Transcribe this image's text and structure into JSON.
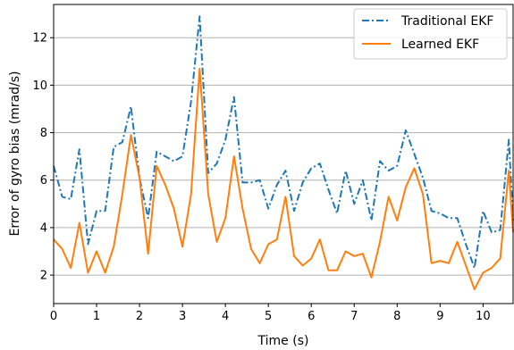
{
  "chart_data": {
    "type": "line",
    "xlabel": "Time (s)",
    "ylabel": "Error of gyro bias (mrad/s)",
    "xlim": [
      0,
      10.7
    ],
    "ylim": [
      0.8,
      13.4
    ],
    "xticks": [
      0,
      1,
      2,
      3,
      4,
      5,
      6,
      7,
      8,
      9,
      10
    ],
    "yticks": [
      2,
      4,
      6,
      8,
      10,
      12
    ],
    "grid": "horizontal",
    "legend_position": "top-right",
    "series": [
      {
        "name": "Traditional EKF",
        "color": "#1f77b4",
        "line_style": "dash-dot",
        "x": [
          0,
          0.2,
          0.4,
          0.6,
          0.8,
          1.0,
          1.2,
          1.4,
          1.6,
          1.8,
          2.0,
          2.2,
          2.4,
          2.6,
          2.8,
          3.0,
          3.2,
          3.4,
          3.6,
          3.8,
          4.0,
          4.2,
          4.4,
          4.6,
          4.8,
          5.0,
          5.2,
          5.4,
          5.6,
          5.8,
          6.0,
          6.2,
          6.4,
          6.6,
          6.8,
          7.0,
          7.2,
          7.4,
          7.6,
          7.8,
          8.0,
          8.2,
          8.4,
          8.6,
          8.8,
          9.0,
          9.2,
          9.4,
          9.6,
          9.8,
          10.0,
          10.2,
          10.4,
          10.6,
          10.7
        ],
        "y": [
          6.6,
          5.3,
          5.2,
          7.3,
          3.3,
          4.7,
          4.7,
          7.4,
          7.6,
          9.1,
          6.1,
          4.4,
          7.2,
          7.0,
          6.8,
          7.0,
          9.3,
          12.9,
          6.3,
          6.7,
          7.7,
          9.5,
          5.9,
          5.9,
          6.0,
          4.8,
          5.8,
          6.4,
          4.7,
          5.9,
          6.5,
          6.7,
          5.6,
          4.6,
          6.4,
          5.0,
          6.0,
          4.3,
          6.8,
          6.4,
          6.6,
          8.1,
          7.1,
          6.1,
          4.7,
          4.6,
          4.4,
          4.4,
          3.3,
          2.3,
          4.7,
          3.8,
          3.9,
          7.7,
          4.3
        ]
      },
      {
        "name": "Learned EKF",
        "color": "#ff7f0e",
        "line_style": "solid",
        "x": [
          0,
          0.2,
          0.4,
          0.6,
          0.8,
          1.0,
          1.2,
          1.4,
          1.6,
          1.8,
          2.0,
          2.2,
          2.4,
          2.6,
          2.8,
          3.0,
          3.2,
          3.4,
          3.6,
          3.8,
          4.0,
          4.2,
          4.4,
          4.6,
          4.8,
          5.0,
          5.2,
          5.4,
          5.6,
          5.8,
          6.0,
          6.2,
          6.4,
          6.6,
          6.8,
          7.0,
          7.2,
          7.4,
          7.6,
          7.8,
          8.0,
          8.2,
          8.4,
          8.6,
          8.8,
          9.0,
          9.2,
          9.4,
          9.6,
          9.8,
          10.0,
          10.2,
          10.4,
          10.6,
          10.7
        ],
        "y": [
          3.5,
          3.1,
          2.3,
          4.2,
          2.1,
          3.0,
          2.1,
          3.2,
          5.4,
          7.9,
          6.1,
          2.9,
          6.6,
          5.8,
          4.8,
          3.2,
          5.4,
          10.7,
          5.4,
          3.4,
          4.4,
          7.0,
          4.8,
          3.1,
          2.5,
          3.3,
          3.5,
          5.3,
          2.8,
          2.4,
          2.7,
          3.5,
          2.2,
          2.2,
          3.0,
          2.8,
          2.9,
          1.9,
          3.4,
          5.3,
          4.3,
          5.7,
          6.5,
          5.4,
          2.5,
          2.6,
          2.5,
          3.4,
          2.4,
          1.4,
          2.1,
          2.3,
          2.7,
          6.4,
          3.8
        ]
      }
    ]
  }
}
